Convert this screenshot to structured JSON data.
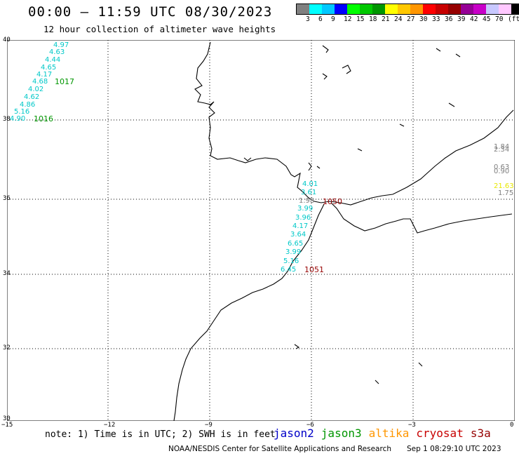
{
  "title": "00:00 – 11:59 UTC 08/30/2023",
  "subtitle": "12 hour collection of altimeter wave heights",
  "colorbar": {
    "colors": [
      "#808080",
      "#00ffff",
      "#00c8ff",
      "#0000ff",
      "#00ff00",
      "#00c800",
      "#009600",
      "#ffff00",
      "#ffc800",
      "#ff9600",
      "#ff0000",
      "#c80000",
      "#960000",
      "#960096",
      "#c800c8",
      "#c8c8ff",
      "#ffc8ff",
      "#000000"
    ],
    "labels": [
      "3",
      "6",
      "9",
      "12",
      "15",
      "18",
      "21",
      "24",
      "27",
      "30",
      "33",
      "36",
      "39",
      "42",
      "45",
      "70",
      "(ft)"
    ]
  },
  "axes": {
    "lat_labels": [
      "40",
      "38",
      "36",
      "34",
      "32",
      "30"
    ],
    "lon_labels": [
      "−15",
      "−12",
      "−9",
      "−6",
      "−3",
      "0"
    ]
  },
  "tracks": {
    "cyan_nw": [
      "4.97",
      "4.63",
      "4.44",
      "4.65",
      "4.17",
      "4.68",
      "4.02",
      "4.62",
      "4.86",
      "5.16",
      "4.90"
    ],
    "cyan_nw_ids": [
      "1017",
      "1016"
    ],
    "cyan_gib": [
      "4.01",
      "3.61",
      "3.99",
      "3.96",
      "4.17",
      "3.64",
      "6.65",
      "3.99",
      "5.16",
      "6.45"
    ],
    "gray_gib": "1.98",
    "red_ids": [
      "1050",
      "1051"
    ],
    "east_gray": [
      "1.84",
      "2.34",
      "0.63",
      "0.90",
      "1.75"
    ],
    "east_yellow": "21.63"
  },
  "note": "note: 1) Time is in UTC; 2) SWH is in feet",
  "satellites": [
    {
      "name": "jason2",
      "color": "#0000c8"
    },
    {
      "name": "jason3",
      "color": "#009600"
    },
    {
      "name": "altika",
      "color": "#ff9600"
    },
    {
      "name": "cryosat",
      "color": "#c80000"
    },
    {
      "name": "s3a",
      "color": "#960000"
    }
  ],
  "footer": "NOAA/NESDIS Center for Satellite Applications and Research",
  "footer_date": "Sep  1 08:29:10 UTC 2023"
}
